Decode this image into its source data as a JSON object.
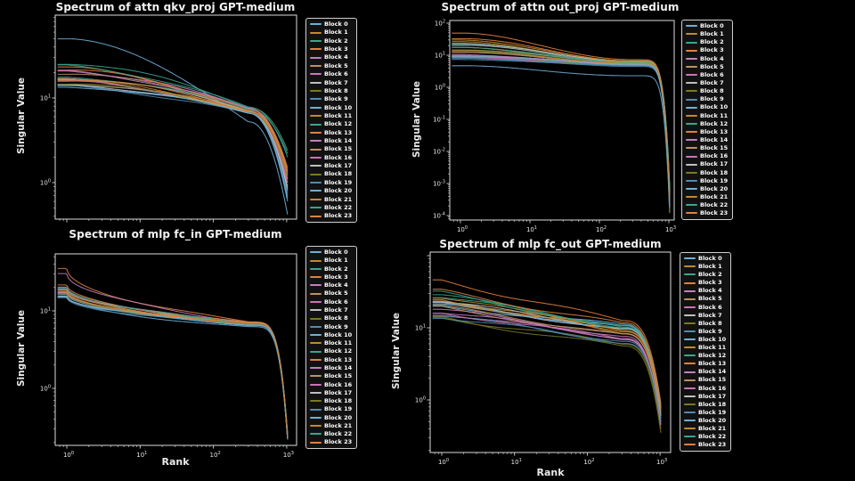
{
  "figure": {
    "background": "#000000"
  },
  "palette": [
    "#6fb0d8",
    "#c08a2f",
    "#3aa68c",
    "#e0813d",
    "#c47fc0",
    "#bb9262",
    "#cb74b6",
    "#bfbfbf",
    "#7a7a24",
    "#4f8cb3"
  ],
  "legend": {
    "labels": [
      "Block 0",
      "Block 1",
      "Block 2",
      "Block 3",
      "Block 4",
      "Block 5",
      "Block 6",
      "Block 7",
      "Block 8",
      "Block 9",
      "Block 10",
      "Block 11",
      "Block 12",
      "Block 13",
      "Block 14",
      "Block 15",
      "Block 16",
      "Block 17",
      "Block 18",
      "Block 19",
      "Block 20",
      "Block 21",
      "Block 22",
      "Block 23"
    ]
  },
  "chart_data": [
    {
      "id": "attn-qkv-proj",
      "type": "line",
      "title": "Spectrum of attn qkv_proj GPT-medium",
      "xlabel": "",
      "ylabel": "Singular Value",
      "x_scale": "log",
      "y_scale": "log",
      "xlim": [
        0.7,
        1365
      ],
      "ylim": [
        0.37,
        95
      ],
      "x_tick_exponents": [
        0,
        1,
        2,
        3
      ],
      "show_x_tick_labels": false,
      "y_tick_exponents": [
        1,
        0
      ],
      "legend_position": "right",
      "sample_ranks": [
        1,
        300,
        1024
      ],
      "series": [
        {
          "name": "Block 0",
          "svals": [
            50,
            5.3,
            0.42
          ]
        },
        {
          "name": "Block 1",
          "svals": [
            16.5,
            7.0,
            1.1
          ]
        },
        {
          "name": "Block 2",
          "svals": [
            26,
            7.8,
            2.4
          ]
        },
        {
          "name": "Block 3",
          "svals": [
            22.5,
            7.4,
            1.5
          ]
        },
        {
          "name": "Block 4",
          "svals": [
            21,
            7.6,
            1.2
          ]
        },
        {
          "name": "Block 5",
          "svals": [
            19.5,
            7.2,
            0.9
          ]
        },
        {
          "name": "Block 6",
          "svals": [
            16,
            6.9,
            1.0
          ]
        },
        {
          "name": "Block 7",
          "svals": [
            17.5,
            7.1,
            0.8
          ]
        },
        {
          "name": "Block 8",
          "svals": [
            15.5,
            6.8,
            1.3
          ]
        },
        {
          "name": "Block 9",
          "svals": [
            14,
            6.6,
            0.7
          ]
        },
        {
          "name": "Block 10",
          "svals": [
            14.5,
            6.7,
            0.6
          ]
        },
        {
          "name": "Block 11",
          "svals": [
            16,
            7.0,
            1.2
          ]
        },
        {
          "name": "Block 12",
          "svals": [
            18,
            7.3,
            2.2
          ]
        },
        {
          "name": "Block 13",
          "svals": [
            21.5,
            7.5,
            1.4
          ]
        },
        {
          "name": "Block 14",
          "svals": [
            20.5,
            7.4,
            1.1
          ]
        },
        {
          "name": "Block 15",
          "svals": [
            15,
            6.8,
            0.9
          ]
        },
        {
          "name": "Block 16",
          "svals": [
            15.5,
            6.9,
            1.0
          ]
        },
        {
          "name": "Block 17",
          "svals": [
            14.5,
            6.7,
            0.85
          ]
        },
        {
          "name": "Block 18",
          "svals": [
            15,
            6.8,
            1.15
          ]
        },
        {
          "name": "Block 19",
          "svals": [
            13.5,
            6.5,
            0.75
          ]
        },
        {
          "name": "Block 20",
          "svals": [
            13.8,
            6.6,
            0.65
          ]
        },
        {
          "name": "Block 21",
          "svals": [
            16.2,
            7.0,
            1.25
          ]
        },
        {
          "name": "Block 22",
          "svals": [
            24,
            7.7,
            2.0
          ]
        },
        {
          "name": "Block 23",
          "svals": [
            17,
            7.1,
            1.35
          ]
        }
      ]
    },
    {
      "id": "attn-out-proj",
      "type": "line",
      "title": "Spectrum of attn out_proj GPT-medium",
      "xlabel": "",
      "ylabel": "Singular Value",
      "x_scale": "log",
      "y_scale": "log",
      "xlim": [
        0.7,
        1450
      ],
      "ylim": [
        7e-05,
        121
      ],
      "x_tick_exponents": [
        0,
        1,
        2,
        3
      ],
      "show_x_tick_labels": true,
      "y_tick_exponents": [
        2,
        1,
        0,
        -1,
        -2,
        -3,
        -4
      ],
      "legend_position": "right",
      "sample_ranks": [
        1,
        300,
        1024
      ],
      "series": [
        {
          "name": "Block 0",
          "svals": [
            4.6,
            2.3,
            0.00012
          ]
        },
        {
          "name": "Block 1",
          "svals": [
            30,
            6.5,
            0.0005
          ]
        },
        {
          "name": "Block 2",
          "svals": [
            22,
            6.8,
            0.0008
          ]
        },
        {
          "name": "Block 3",
          "svals": [
            17,
            6.0,
            0.0004
          ]
        },
        {
          "name": "Block 4",
          "svals": [
            10,
            5.2,
            0.0003
          ]
        },
        {
          "name": "Block 5",
          "svals": [
            12,
            5.6,
            0.0006
          ]
        },
        {
          "name": "Block 6",
          "svals": [
            8.5,
            4.8,
            0.00025
          ]
        },
        {
          "name": "Block 7",
          "svals": [
            21,
            5.9,
            0.0007
          ]
        },
        {
          "name": "Block 8",
          "svals": [
            13,
            5.4,
            0.00015
          ]
        },
        {
          "name": "Block 9",
          "svals": [
            7.5,
            4.5,
            0.00035
          ]
        },
        {
          "name": "Block 10",
          "svals": [
            9,
            5.0,
            0.0002
          ]
        },
        {
          "name": "Block 11",
          "svals": [
            26,
            6.3,
            0.0006
          ]
        },
        {
          "name": "Block 12",
          "svals": [
            15,
            5.8,
            0.0009
          ]
        },
        {
          "name": "Block 13",
          "svals": [
            48,
            7.2,
            0.0005
          ]
        },
        {
          "name": "Block 14",
          "svals": [
            10.5,
            5.3,
            0.0004
          ]
        },
        {
          "name": "Block 15",
          "svals": [
            12.5,
            5.5,
            0.0003
          ]
        },
        {
          "name": "Block 16",
          "svals": [
            8.8,
            4.9,
            0.0002
          ]
        },
        {
          "name": "Block 17",
          "svals": [
            24,
            6.1,
            0.00055
          ]
        },
        {
          "name": "Block 18",
          "svals": [
            9.2,
            5.0,
            0.00012
          ]
        },
        {
          "name": "Block 19",
          "svals": [
            8,
            4.7,
            0.00028
          ]
        },
        {
          "name": "Block 20",
          "svals": [
            9.5,
            5.1,
            0.00018
          ]
        },
        {
          "name": "Block 21",
          "svals": [
            14,
            5.7,
            0.00065
          ]
        },
        {
          "name": "Block 22",
          "svals": [
            18,
            6.0,
            0.00075
          ]
        },
        {
          "name": "Block 23",
          "svals": [
            33,
            6.6,
            0.00045
          ]
        }
      ]
    },
    {
      "id": "mlp-fc-in",
      "type": "line",
      "title": "Spectrum of mlp fc_in GPT-medium",
      "xlabel": "Rank",
      "ylabel": "Singular Value",
      "x_scale": "log",
      "y_scale": "log",
      "xlim": [
        0.7,
        1365
      ],
      "ylim": [
        0.18,
        54
      ],
      "x_tick_exponents": [
        0,
        1,
        2,
        3
      ],
      "show_x_tick_labels": true,
      "y_tick_exponents": [
        1,
        0
      ],
      "legend_position": "right",
      "sample_ranks": [
        1,
        300,
        1024
      ],
      "series": [
        {
          "name": "Block 0",
          "svals": [
            15.2,
            6.2,
            0.22
          ]
        },
        {
          "name": "Block 1",
          "svals": [
            17,
            6.8,
            0.24
          ]
        },
        {
          "name": "Block 2",
          "svals": [
            20,
            7.0,
            0.26
          ]
        },
        {
          "name": "Block 3",
          "svals": [
            35,
            7.2,
            0.25
          ]
        },
        {
          "name": "Block 4",
          "svals": [
            31,
            7.1,
            0.23
          ]
        },
        {
          "name": "Block 5",
          "svals": [
            18.5,
            6.9,
            0.24
          ]
        },
        {
          "name": "Block 6",
          "svals": [
            17.5,
            6.8,
            0.22
          ]
        },
        {
          "name": "Block 7",
          "svals": [
            19,
            7.0,
            0.25
          ]
        },
        {
          "name": "Block 8",
          "svals": [
            16.5,
            6.7,
            0.23
          ]
        },
        {
          "name": "Block 9",
          "svals": [
            15.5,
            6.6,
            0.22
          ]
        },
        {
          "name": "Block 10",
          "svals": [
            16,
            6.7,
            0.24
          ]
        },
        {
          "name": "Block 11",
          "svals": [
            17.8,
            6.9,
            0.25
          ]
        },
        {
          "name": "Block 12",
          "svals": [
            19.5,
            7.0,
            0.26
          ]
        },
        {
          "name": "Block 13",
          "svals": [
            21,
            7.1,
            0.24
          ]
        },
        {
          "name": "Block 14",
          "svals": [
            20.5,
            7.0,
            0.23
          ]
        },
        {
          "name": "Block 15",
          "svals": [
            16.8,
            6.8,
            0.24
          ]
        },
        {
          "name": "Block 16",
          "svals": [
            17.2,
            6.8,
            0.22
          ]
        },
        {
          "name": "Block 17",
          "svals": [
            15.8,
            6.6,
            0.23
          ]
        },
        {
          "name": "Block 18",
          "svals": [
            16.2,
            6.7,
            0.25
          ]
        },
        {
          "name": "Block 19",
          "svals": [
            15,
            6.5,
            0.22
          ]
        },
        {
          "name": "Block 20",
          "svals": [
            15.4,
            6.6,
            0.23
          ]
        },
        {
          "name": "Block 21",
          "svals": [
            17.4,
            6.9,
            0.24
          ]
        },
        {
          "name": "Block 22",
          "svals": [
            19.8,
            7.0,
            0.26
          ]
        },
        {
          "name": "Block 23",
          "svals": [
            18.2,
            6.9,
            0.25
          ]
        }
      ]
    },
    {
      "id": "mlp-fc-out",
      "type": "line",
      "title": "Spectrum of mlp fc_out GPT-medium",
      "xlabel": "Rank",
      "ylabel": "Singular Value",
      "x_scale": "log",
      "y_scale": "log",
      "xlim": [
        0.7,
        1430
      ],
      "ylim": [
        0.19,
        112
      ],
      "x_tick_exponents": [
        0,
        1,
        2,
        3
      ],
      "show_x_tick_labels": true,
      "y_tick_exponents": [
        1,
        0
      ],
      "legend_position": "right",
      "sample_ranks": [
        1,
        300,
        1024
      ],
      "series": [
        {
          "name": "Block 0",
          "svals": [
            20,
            11,
            0.55
          ]
        },
        {
          "name": "Block 1",
          "svals": [
            27,
            9,
            0.7
          ]
        },
        {
          "name": "Block 2",
          "svals": [
            30,
            10,
            0.8
          ]
        },
        {
          "name": "Block 3",
          "svals": [
            24,
            8.5,
            0.6
          ]
        },
        {
          "name": "Block 4",
          "svals": [
            18,
            7.5,
            0.45
          ]
        },
        {
          "name": "Block 5",
          "svals": [
            19,
            8,
            0.65
          ]
        },
        {
          "name": "Block 6",
          "svals": [
            16,
            7,
            0.5
          ]
        },
        {
          "name": "Block 7",
          "svals": [
            22,
            9.5,
            0.75
          ]
        },
        {
          "name": "Block 8",
          "svals": [
            14,
            6,
            0.4
          ]
        },
        {
          "name": "Block 9",
          "svals": [
            15,
            6.5,
            0.55
          ]
        },
        {
          "name": "Block 10",
          "svals": [
            21,
            10.5,
            0.6
          ]
        },
        {
          "name": "Block 11",
          "svals": [
            25,
            9.2,
            0.7
          ]
        },
        {
          "name": "Block 12",
          "svals": [
            28,
            10.8,
            0.85
          ]
        },
        {
          "name": "Block 13",
          "svals": [
            45,
            12.5,
            0.9
          ]
        },
        {
          "name": "Block 14",
          "svals": [
            17,
            7.2,
            0.5
          ]
        },
        {
          "name": "Block 15",
          "svals": [
            19.5,
            8.2,
            0.6
          ]
        },
        {
          "name": "Block 16",
          "svals": [
            16.5,
            7,
            0.45
          ]
        },
        {
          "name": "Block 17",
          "svals": [
            23,
            9.8,
            0.8
          ]
        },
        {
          "name": "Block 18",
          "svals": [
            13.5,
            5.5,
            0.35
          ]
        },
        {
          "name": "Block 19",
          "svals": [
            14.5,
            6.2,
            0.5
          ]
        },
        {
          "name": "Block 20",
          "svals": [
            20.5,
            10,
            0.65
          ]
        },
        {
          "name": "Block 21",
          "svals": [
            24.5,
            9,
            0.7
          ]
        },
        {
          "name": "Block 22",
          "svals": [
            27.5,
            10.2,
            0.8
          ]
        },
        {
          "name": "Block 23",
          "svals": [
            32,
            11.5,
            0.75
          ]
        }
      ]
    }
  ]
}
